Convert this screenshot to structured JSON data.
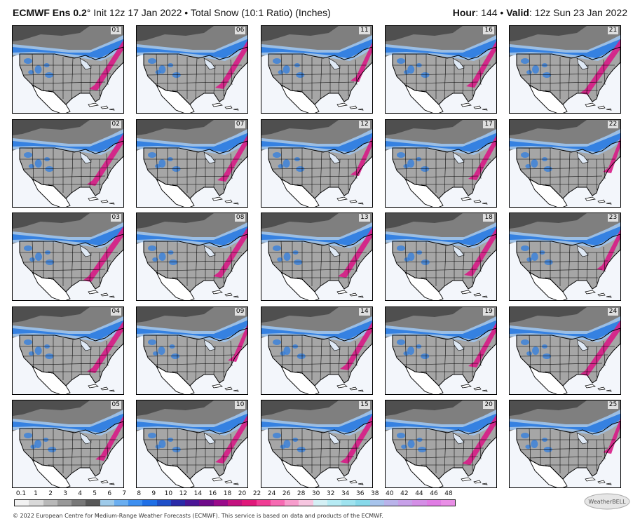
{
  "header": {
    "model": "ECMWF Ens 0.2",
    "degree": "°",
    "init": " Init 12z 17 Jan 2022 • Total Snow (10:1 Ratio) (Inches)",
    "hour_label": "Hour",
    "hour_value": ": 144 • ",
    "valid_label": "Valid",
    "valid_value": ": 12z Sun 23 Jan 2022"
  },
  "panels": [
    {
      "member": "01",
      "intensity": 0.85
    },
    {
      "member": "06",
      "intensity": 0.8
    },
    {
      "member": "11",
      "intensity": 0.55
    },
    {
      "member": "16",
      "intensity": 0.75
    },
    {
      "member": "21",
      "intensity": 1.0
    },
    {
      "member": "02",
      "intensity": 0.9
    },
    {
      "member": "07",
      "intensity": 0.75
    },
    {
      "member": "12",
      "intensity": 0.55
    },
    {
      "member": "17",
      "intensity": 0.7
    },
    {
      "member": "22",
      "intensity": 0.45
    },
    {
      "member": "03",
      "intensity": 1.0
    },
    {
      "member": "08",
      "intensity": 0.85
    },
    {
      "member": "13",
      "intensity": 0.85
    },
    {
      "member": "18",
      "intensity": 0.8
    },
    {
      "member": "23",
      "intensity": 0.6
    },
    {
      "member": "04",
      "intensity": 0.9
    },
    {
      "member": "09",
      "intensity": 0.5
    },
    {
      "member": "14",
      "intensity": 0.8
    },
    {
      "member": "19",
      "intensity": 0.7
    },
    {
      "member": "24",
      "intensity": 1.0
    },
    {
      "member": "05",
      "intensity": 0.7
    },
    {
      "member": "10",
      "intensity": 0.8
    },
    {
      "member": "15",
      "intensity": 0.8
    },
    {
      "member": "20",
      "intensity": 0.85
    },
    {
      "member": "25",
      "intensity": 0.45
    }
  ],
  "colorbar": {
    "ticks": [
      "0.1",
      "1",
      "2",
      "3",
      "4",
      "5",
      "6",
      "7",
      "8",
      "9",
      "10",
      "12",
      "14",
      "16",
      "18",
      "20",
      "22",
      "24",
      "26",
      "28",
      "30",
      "32",
      "34",
      "36",
      "38",
      "40",
      "42",
      "44",
      "46",
      "48"
    ],
    "colors": [
      "#f2f2f2",
      "#d9d9d9",
      "#b8b8b8",
      "#989898",
      "#787878",
      "#585858",
      "#9ecae9",
      "#6aaef0",
      "#3d8ff0",
      "#1f6fe6",
      "#1f4fc8",
      "#2a2aa8",
      "#4b1596",
      "#6f0a8a",
      "#990a8a",
      "#c3127f",
      "#e0187a",
      "#f03c94",
      "#f66ab2",
      "#f79ccc",
      "#f6c6e0",
      "#d4f0f5",
      "#b6ebf4",
      "#9fe3ef",
      "#87d9ea",
      "#a7c4ec",
      "#b9b3ea",
      "#c7a0e8",
      "#d48ee6",
      "#e07ce4",
      "#e98ee6"
    ]
  },
  "footer": "© 2022 European Centre for Medium-Range Weather Forecasts (ECMWF). This service is based on data and products of the ECMWF.",
  "logo_text": "WeatherBELL",
  "map_colors": {
    "canada_gray": "#7f7f7f",
    "dark_gray": "#4f4f4f",
    "snow_light": "#9fc5f0",
    "snow_blue": "#2f7de0",
    "snow_magenta": "#d81b86",
    "ocean": "#f3f6fb"
  }
}
